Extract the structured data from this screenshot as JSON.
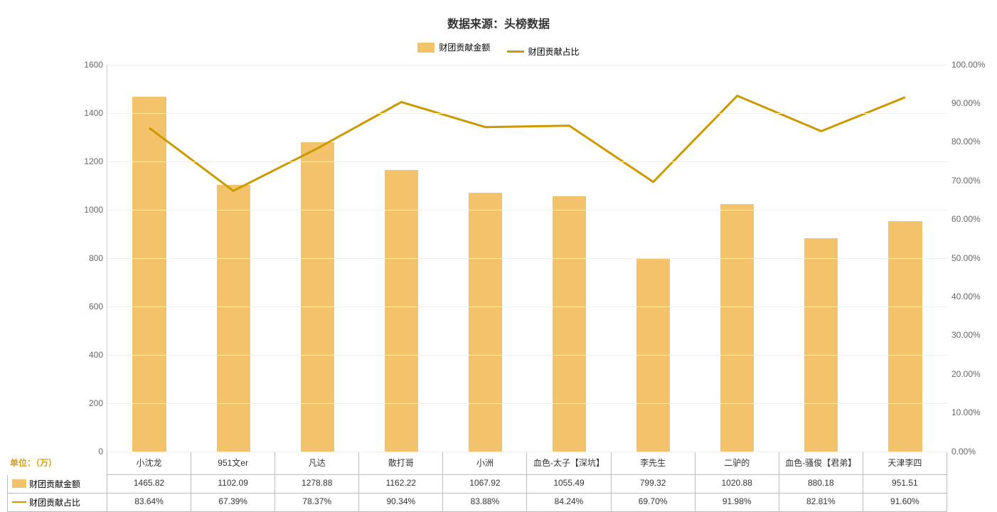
{
  "title": "数据来源：头榜数据",
  "unit_label": "单位：（万）",
  "unit_label_color": "#e69b00",
  "legend": {
    "bar": "财团贡献金额",
    "line": "财团贡献占比"
  },
  "chart": {
    "type": "bar+line",
    "categories": [
      "小沈龙",
      "951文er",
      "凡达",
      "散打哥",
      "小洲",
      "血色-太子【深坑】",
      "李先生",
      "二驴的",
      "血色-骚俊【君弟】",
      "天津李四"
    ],
    "bar_values": [
      1465.82,
      1102.09,
      1278.88,
      1162.22,
      1067.92,
      1055.49,
      799.32,
      1020.88,
      880.18,
      951.51
    ],
    "bar_display": [
      "1465.82",
      "1102.09",
      "1278.88",
      "1162.22",
      "1067.92",
      "1055.49",
      "799.32",
      "1020.88",
      "880.18",
      "951.51"
    ],
    "line_values": [
      83.64,
      67.39,
      78.37,
      90.34,
      83.88,
      84.24,
      69.7,
      91.98,
      82.81,
      91.6
    ],
    "line_display": [
      "83.64%",
      "67.39%",
      "78.37%",
      "90.34%",
      "83.88%",
      "84.24%",
      "69.70%",
      "91.98%",
      "82.81%",
      "91.60%"
    ],
    "y_left": {
      "min": 0,
      "max": 1600,
      "step": 200
    },
    "y_right": {
      "min": 0,
      "max": 100,
      "step": 10,
      "suffix": ".00%"
    },
    "bar_color": "#f2c36b",
    "line_color": "#cc9900",
    "line_width": 3,
    "grid_color": "#eeeeee",
    "axis_color": "#cccccc",
    "background_color": "#ffffff",
    "title_fontsize": 16,
    "label_fontsize": 12,
    "bar_width_pct": 40
  }
}
